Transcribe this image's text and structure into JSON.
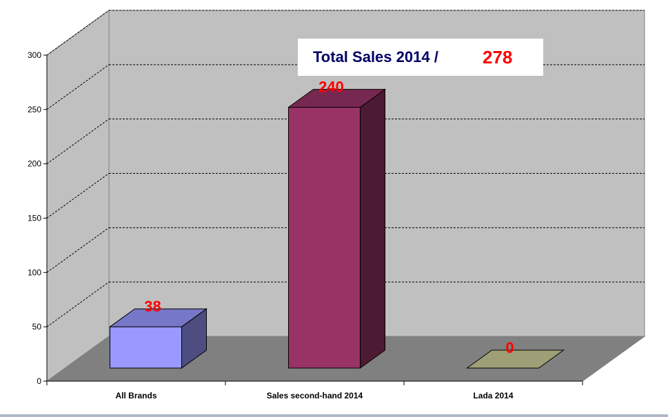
{
  "chart_data": {
    "type": "bar",
    "title": "Total Sales 2014 /",
    "title_value": "278",
    "categories": [
      "All Brands",
      "Sales second-hand 2014",
      "Lada 2014"
    ],
    "values": [
      38,
      240,
      0
    ],
    "data_labels": [
      "38",
      "240",
      "0"
    ],
    "bar_colors": [
      "#9999ff",
      "#993366",
      "#cccc99"
    ],
    "ylim": [
      0,
      300
    ],
    "yticks": [
      0,
      50,
      100,
      150,
      200,
      250,
      300
    ],
    "grid": true,
    "three_d": true
  }
}
